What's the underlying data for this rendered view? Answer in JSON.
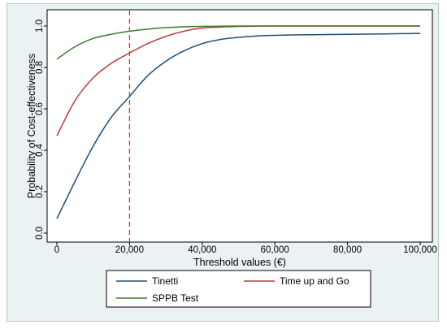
{
  "chart_data": {
    "type": "line",
    "xlabel": "Threshold values (€)",
    "ylabel": "Probability of Cost-effectiveness",
    "xlim": [
      0,
      100000
    ],
    "ylim": [
      0,
      1
    ],
    "x_ticks": [
      0,
      20000,
      40000,
      60000,
      80000,
      100000
    ],
    "x_tick_labels": [
      "0",
      "20,000",
      "40,000",
      "60,000",
      "80,000",
      "100,000"
    ],
    "y_ticks": [
      0,
      0.2,
      0.4,
      0.6,
      0.8,
      1.0
    ],
    "y_tick_labels": [
      "0.0",
      "0.2",
      "0.4",
      "0.6",
      "0.8",
      "1.0"
    ],
    "grid": false,
    "reference_line": {
      "x": 20000,
      "style": "dashed",
      "color": "#d9322e"
    },
    "legend_position": "bottom",
    "x": [
      0,
      5000,
      10000,
      15000,
      20000,
      25000,
      30000,
      35000,
      40000,
      45000,
      50000,
      55000,
      60000,
      65000,
      70000,
      75000,
      80000,
      85000,
      90000,
      95000,
      100000
    ],
    "series": [
      {
        "name": "Tinetti",
        "color": "#1d4f7a",
        "values": [
          0.07,
          0.25,
          0.42,
          0.56,
          0.66,
          0.76,
          0.83,
          0.88,
          0.915,
          0.935,
          0.945,
          0.952,
          0.955,
          0.957,
          0.958,
          0.959,
          0.96,
          0.961,
          0.962,
          0.963,
          0.964
        ]
      },
      {
        "name": "Time up and Go",
        "color": "#c23b3b",
        "values": [
          0.47,
          0.64,
          0.75,
          0.82,
          0.87,
          0.915,
          0.95,
          0.975,
          0.99,
          0.995,
          0.998,
          0.999,
          1.0,
          1.0,
          1.0,
          1.0,
          1.0,
          1.0,
          1.0,
          1.0,
          1.0
        ]
      },
      {
        "name": "SPPB Test",
        "color": "#3e7a2a",
        "values": [
          0.84,
          0.9,
          0.94,
          0.96,
          0.975,
          0.985,
          0.992,
          0.996,
          0.998,
          0.999,
          1.0,
          1.0,
          1.0,
          1.0,
          1.0,
          1.0,
          1.0,
          1.0,
          1.0,
          1.0,
          1.0
        ]
      }
    ]
  }
}
